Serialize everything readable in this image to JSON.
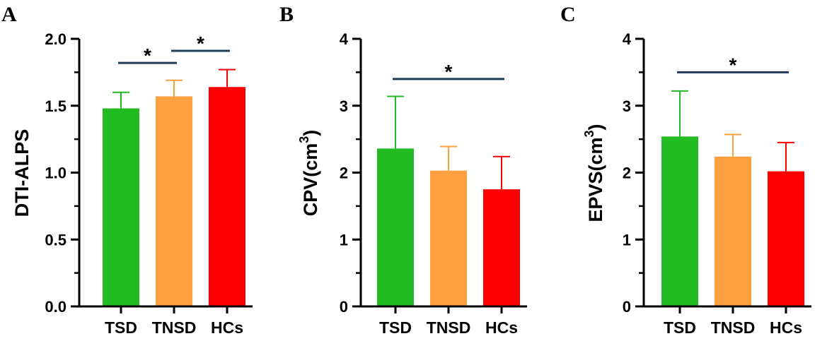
{
  "chart_data": [
    {
      "panel": "A",
      "type": "bar",
      "categories": [
        "TSD",
        "TNSD",
        "HCs"
      ],
      "values": [
        1.48,
        1.57,
        1.64
      ],
      "errors": [
        0.12,
        0.12,
        0.13
      ],
      "colors": [
        "#22bb22",
        "#ffa040",
        "#ff0000"
      ],
      "ylabel": "DTI-ALPS",
      "ylabel_sup": "",
      "ylabel_tail": "",
      "ylim": [
        0,
        2.0
      ],
      "yticks": [
        0.0,
        0.5,
        1.0,
        1.5,
        2.0
      ],
      "ytick_labels": [
        "0.0",
        "0.5",
        "1.0",
        "1.5",
        "2.0"
      ],
      "significance": [
        {
          "from": 0,
          "to": 1,
          "y": 1.82,
          "label": "*"
        },
        {
          "from": 1,
          "to": 2,
          "y": 1.91,
          "label": "*"
        }
      ]
    },
    {
      "panel": "B",
      "type": "bar",
      "categories": [
        "TSD",
        "TNSD",
        "HCs"
      ],
      "values": [
        2.36,
        2.03,
        1.75
      ],
      "errors": [
        0.78,
        0.36,
        0.49
      ],
      "colors": [
        "#22bb22",
        "#ffa040",
        "#ff0000"
      ],
      "ylabel": "CPV(cm",
      "ylabel_sup": "3",
      "ylabel_tail": ")",
      "ylim": [
        0,
        4
      ],
      "yticks": [
        0,
        1,
        2,
        3,
        4
      ],
      "ytick_labels": [
        "0",
        "1",
        "2",
        "3",
        "4"
      ],
      "significance": [
        {
          "from": 0,
          "to": 2,
          "y": 3.4,
          "label": "*"
        }
      ]
    },
    {
      "panel": "C",
      "type": "bar",
      "categories": [
        "TSD",
        "TNSD",
        "HCs"
      ],
      "values": [
        2.54,
        2.24,
        2.02
      ],
      "errors": [
        0.68,
        0.33,
        0.43
      ],
      "colors": [
        "#22bb22",
        "#ffa040",
        "#ff0000"
      ],
      "ylabel": "EPVS(cm",
      "ylabel_sup": "3",
      "ylabel_tail": ")",
      "ylim": [
        0,
        4
      ],
      "yticks": [
        0,
        1,
        2,
        3,
        4
      ],
      "ytick_labels": [
        "0",
        "1",
        "2",
        "3",
        "4"
      ],
      "significance": [
        {
          "from": 0,
          "to": 2,
          "y": 3.5,
          "label": "*"
        }
      ]
    }
  ],
  "line_color": "#1f3b5a"
}
